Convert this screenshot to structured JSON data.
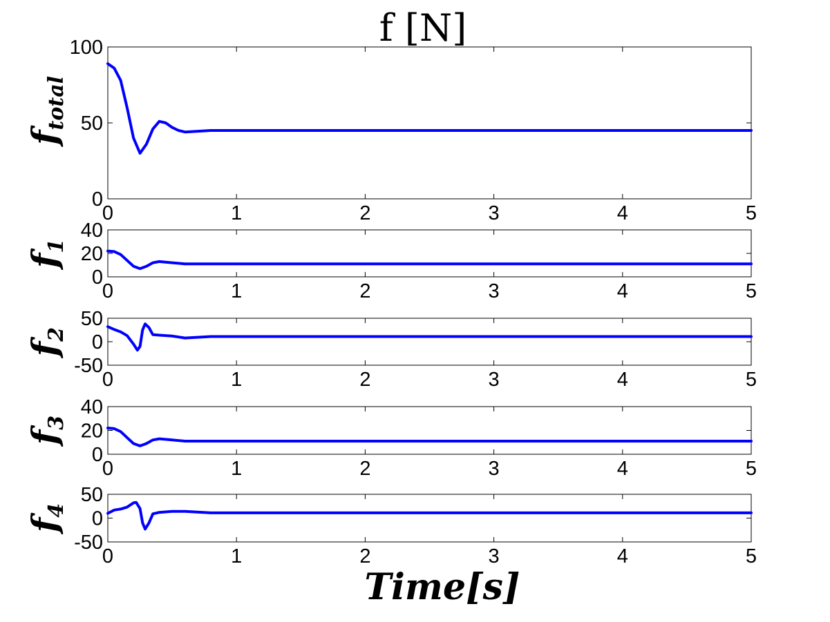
{
  "figure": {
    "title": "f [N]",
    "xlabel": "Time[s]"
  },
  "chart_data": [
    {
      "type": "line",
      "ylabel_main": "f",
      "ylabel_sub": "total",
      "xlim": [
        0,
        5
      ],
      "ylim": [
        0,
        100
      ],
      "xticks": [
        0,
        1,
        2,
        3,
        4,
        5
      ],
      "yticks": [
        0,
        50,
        100
      ],
      "grid": false,
      "color": "#0000ff",
      "series": [
        {
          "x": [
            0,
            0.05,
            0.1,
            0.15,
            0.2,
            0.25,
            0.3,
            0.35,
            0.4,
            0.45,
            0.5,
            0.55,
            0.6,
            0.7,
            0.8,
            1,
            2,
            3,
            4,
            5
          ],
          "values": [
            89,
            86,
            78,
            60,
            40,
            30,
            36,
            46,
            51,
            50,
            47,
            45,
            44,
            44.5,
            45,
            45,
            45,
            45,
            45,
            45
          ]
        }
      ]
    },
    {
      "type": "line",
      "ylabel_main": "f",
      "ylabel_sub": "1",
      "xlim": [
        0,
        5
      ],
      "ylim": [
        0,
        40
      ],
      "xticks": [
        0,
        1,
        2,
        3,
        4,
        5
      ],
      "yticks": [
        0,
        20,
        40
      ],
      "grid": false,
      "color": "#0000ff",
      "series": [
        {
          "x": [
            0,
            0.05,
            0.1,
            0.15,
            0.2,
            0.25,
            0.3,
            0.35,
            0.4,
            0.5,
            0.6,
            0.8,
            1,
            2,
            3,
            4,
            5
          ],
          "values": [
            22,
            21.5,
            19,
            14,
            9,
            7,
            9,
            12,
            13,
            12,
            11,
            11,
            11,
            11,
            11,
            11,
            11
          ]
        }
      ]
    },
    {
      "type": "line",
      "ylabel_main": "f",
      "ylabel_sub": "2",
      "xlim": [
        0,
        5
      ],
      "ylim": [
        -50,
        50
      ],
      "xticks": [
        0,
        1,
        2,
        3,
        4,
        5
      ],
      "yticks": [
        -50,
        0,
        50
      ],
      "grid": false,
      "color": "#0000ff",
      "series": [
        {
          "x": [
            0,
            0.05,
            0.1,
            0.15,
            0.2,
            0.23,
            0.25,
            0.27,
            0.29,
            0.32,
            0.35,
            0.4,
            0.5,
            0.6,
            0.8,
            1,
            2,
            3,
            4,
            5
          ],
          "values": [
            32,
            26,
            21,
            13,
            -5,
            -18,
            -10,
            25,
            38,
            30,
            15,
            14,
            12,
            8,
            11,
            11,
            11,
            11,
            11,
            11
          ]
        }
      ]
    },
    {
      "type": "line",
      "ylabel_main": "f",
      "ylabel_sub": "3",
      "xlim": [
        0,
        5
      ],
      "ylim": [
        0,
        40
      ],
      "xticks": [
        0,
        1,
        2,
        3,
        4,
        5
      ],
      "yticks": [
        0,
        20,
        40
      ],
      "grid": false,
      "color": "#0000ff",
      "series": [
        {
          "x": [
            0,
            0.05,
            0.1,
            0.15,
            0.2,
            0.25,
            0.3,
            0.35,
            0.4,
            0.5,
            0.6,
            0.8,
            1,
            2,
            3,
            4,
            5
          ],
          "values": [
            22,
            21.5,
            19,
            14,
            9,
            7,
            9,
            12,
            13,
            12,
            11,
            11,
            11,
            11,
            11,
            11,
            11
          ]
        }
      ]
    },
    {
      "type": "line",
      "ylabel_main": "f",
      "ylabel_sub": "4",
      "xlim": [
        0,
        5
      ],
      "ylim": [
        -50,
        50
      ],
      "xticks": [
        0,
        1,
        2,
        3,
        4,
        5
      ],
      "yticks": [
        -50,
        0,
        50
      ],
      "grid": false,
      "color": "#0000ff",
      "series": [
        {
          "x": [
            0,
            0.05,
            0.1,
            0.15,
            0.2,
            0.22,
            0.25,
            0.27,
            0.29,
            0.32,
            0.35,
            0.4,
            0.5,
            0.6,
            0.8,
            1,
            2,
            3,
            4,
            5
          ],
          "values": [
            10,
            17,
            19,
            23,
            32,
            33,
            20,
            -10,
            -23,
            -10,
            9,
            12,
            14,
            14,
            11,
            11,
            11,
            11,
            11,
            11
          ]
        }
      ]
    }
  ]
}
